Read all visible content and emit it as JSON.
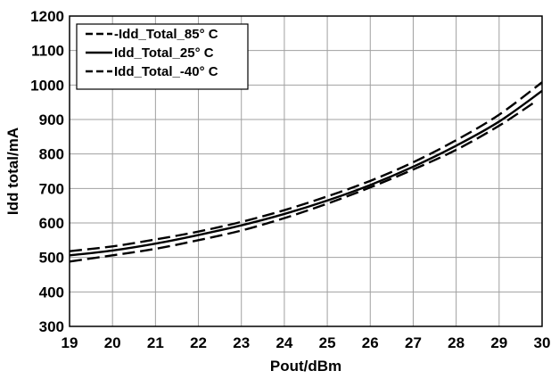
{
  "chart_data": {
    "type": "line",
    "title": "",
    "xlabel": "Pout/dBm",
    "ylabel": "Idd total/mA",
    "xlim": [
      19,
      30
    ],
    "ylim": [
      300,
      1200
    ],
    "xticks": [
      19,
      20,
      21,
      22,
      23,
      24,
      25,
      26,
      27,
      28,
      29,
      30
    ],
    "yticks": [
      300,
      400,
      500,
      600,
      700,
      800,
      900,
      1000,
      1100,
      1200
    ],
    "grid": true,
    "legend_position": "top-left",
    "series": [
      {
        "name": "-Idd_Total_85° C",
        "line_style": "dashed",
        "color": "#000000",
        "x": [
          19,
          20,
          21,
          22,
          23,
          24,
          25,
          26,
          27,
          28,
          29,
          29.8
        ],
        "y": [
          488,
          506,
          525,
          550,
          578,
          614,
          656,
          703,
          755,
          812,
          882,
          948
        ]
      },
      {
        "name": "Idd_Total_25° C",
        "line_style": "solid",
        "color": "#000000",
        "x": [
          19,
          20,
          21,
          22,
          23,
          24,
          25,
          26,
          27,
          28,
          29,
          30
        ],
        "y": [
          506,
          520,
          540,
          565,
          593,
          626,
          665,
          710,
          763,
          824,
          894,
          983
        ]
      },
      {
        "name": "Idd_Total_-40° C",
        "line_style": "dashed",
        "color": "#000000",
        "x": [
          19,
          20,
          21,
          22,
          23,
          24,
          25,
          26,
          27,
          28,
          29,
          30
        ],
        "y": [
          518,
          532,
          552,
          575,
          603,
          637,
          677,
          722,
          776,
          840,
          914,
          1008
        ]
      }
    ]
  }
}
